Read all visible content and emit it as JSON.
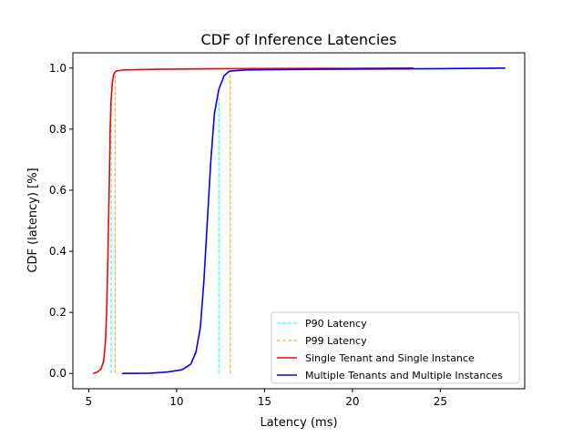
{
  "chart_data": {
    "type": "line",
    "title": "CDF of Inference Latencies",
    "xlabel": "Latency (ms)",
    "ylabel": "CDF (latency) [%]",
    "xlim": [
      4.1,
      29.8
    ],
    "ylim": [
      -0.05,
      1.05
    ],
    "xticks": [
      5,
      10,
      15,
      20,
      25
    ],
    "yticks": [
      0.0,
      0.2,
      0.4,
      0.6,
      0.8,
      1.0
    ],
    "xtick_labels": [
      "5",
      "10",
      "15",
      "20",
      "25"
    ],
    "ytick_labels": [
      "0.0",
      "0.2",
      "0.4",
      "0.6",
      "0.8",
      "1.0"
    ],
    "grid": false,
    "legend_position": "lower-right",
    "legend": [
      {
        "label": "P90 Latency",
        "color": "#00ffff",
        "style": "dashed"
      },
      {
        "label": "P99 Latency",
        "color": "#ffa500",
        "style": "dashed"
      },
      {
        "label": "Single Tenant and Single Instance",
        "color": "#ff0000",
        "style": "solid"
      },
      {
        "label": "Multiple Tenants and Multiple Instances",
        "color": "#0000ff",
        "style": "solid"
      }
    ],
    "series": [
      {
        "name": "Single Tenant and Single Instance",
        "color": "#ff0000",
        "points": [
          [
            5.25,
            0.0
          ],
          [
            5.5,
            0.005
          ],
          [
            5.7,
            0.015
          ],
          [
            5.85,
            0.04
          ],
          [
            5.95,
            0.1
          ],
          [
            6.02,
            0.2
          ],
          [
            6.08,
            0.35
          ],
          [
            6.13,
            0.5
          ],
          [
            6.18,
            0.65
          ],
          [
            6.22,
            0.8
          ],
          [
            6.28,
            0.9
          ],
          [
            6.34,
            0.95
          ],
          [
            6.42,
            0.98
          ],
          [
            6.55,
            0.99
          ],
          [
            7.0,
            0.994
          ],
          [
            9.0,
            0.996
          ],
          [
            13.0,
            0.998
          ],
          [
            18.0,
            0.999
          ],
          [
            23.5,
            1.0
          ]
        ]
      },
      {
        "name": "Multiple Tenants and Multiple Instances",
        "color": "#0000ff",
        "points": [
          [
            6.9,
            0.0
          ],
          [
            8.5,
            0.001
          ],
          [
            9.5,
            0.005
          ],
          [
            10.3,
            0.012
          ],
          [
            10.8,
            0.03
          ],
          [
            11.1,
            0.07
          ],
          [
            11.35,
            0.15
          ],
          [
            11.55,
            0.3
          ],
          [
            11.75,
            0.5
          ],
          [
            11.95,
            0.7
          ],
          [
            12.15,
            0.85
          ],
          [
            12.4,
            0.93
          ],
          [
            12.7,
            0.975
          ],
          [
            13.0,
            0.99
          ],
          [
            14.0,
            0.994
          ],
          [
            18.0,
            0.996
          ],
          [
            25.0,
            0.998
          ],
          [
            28.7,
            1.0
          ]
        ]
      }
    ],
    "reference_lines": [
      {
        "series": "Single Tenant and Single Instance",
        "label": "P90 Latency",
        "x": 6.28,
        "y": 0.9,
        "color": "#00ffff"
      },
      {
        "series": "Single Tenant and Single Instance",
        "label": "P99 Latency",
        "x": 6.5,
        "y": 0.99,
        "color": "#ffa500"
      },
      {
        "series": "Multiple Tenants and Multiple Instances",
        "label": "P90 Latency",
        "x": 12.4,
        "y": 0.9,
        "color": "#00ffff"
      },
      {
        "series": "Multiple Tenants and Multiple Instances",
        "label": "P99 Latency",
        "x": 13.05,
        "y": 0.99,
        "color": "#ffa500"
      }
    ]
  }
}
